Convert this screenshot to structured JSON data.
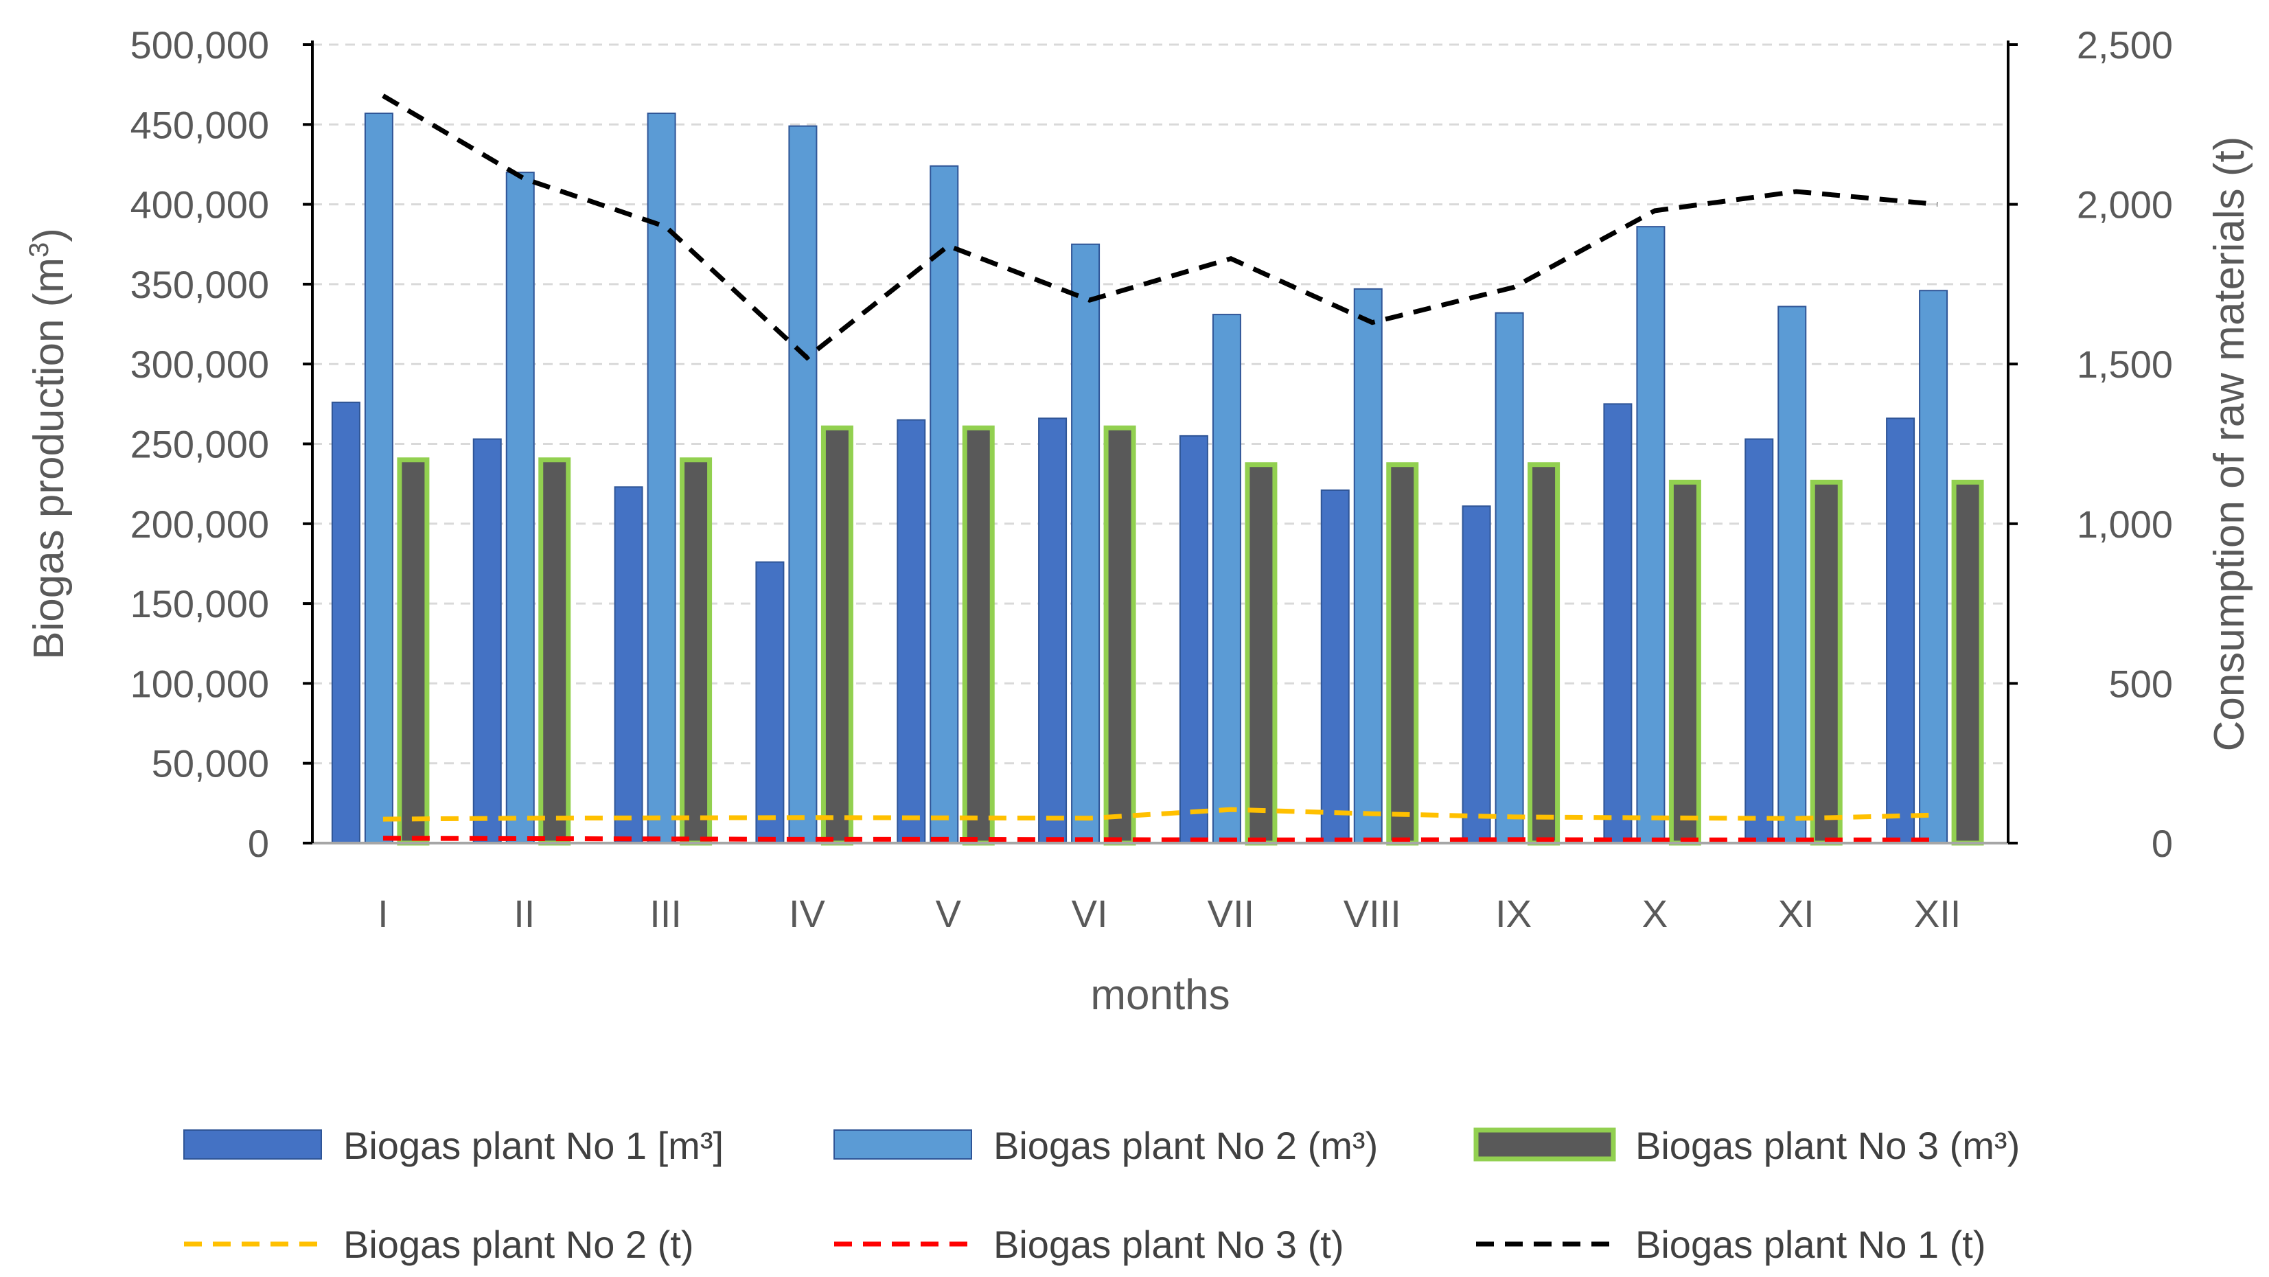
{
  "chart_data": {
    "type": "bar",
    "title": "",
    "xlabel": "months",
    "ylabel": "Biogas production (m",
    "ylabel_sup": "3",
    "ylabel_end": ")",
    "y2label": "Consumption of raw materials (t)",
    "ylim": [
      0,
      500000
    ],
    "y2lim": [
      0,
      2500
    ],
    "yticks": [
      "0",
      "50,000",
      "100,000",
      "150,000",
      "200,000",
      "250,000",
      "300,000",
      "350,000",
      "400,000",
      "450,000",
      "500,000"
    ],
    "y2ticks": [
      "0",
      "500",
      "1,000",
      "1,500",
      "2,000",
      "2,500"
    ],
    "grid": true,
    "legend_position": "bottom",
    "categories": [
      "I",
      "II",
      "III",
      "IV",
      "V",
      "VI",
      "VII",
      "VIII",
      "IX",
      "X",
      "XI",
      "XII"
    ],
    "series": [
      {
        "name": "Biogas plant No 1 [m³]",
        "type": "bar",
        "axis": "left",
        "color": "#4472C4",
        "values": [
          276000,
          253000,
          223000,
          176000,
          265000,
          266000,
          255000,
          221000,
          211000,
          275000,
          253000,
          266000
        ]
      },
      {
        "name": "Biogas plant No 2 (m³)",
        "type": "bar",
        "axis": "left",
        "color": "#5B9BD5",
        "values": [
          457000,
          420000,
          457000,
          449000,
          424000,
          375000,
          331000,
          347000,
          332000,
          386000,
          336000,
          346000
        ]
      },
      {
        "name": "Biogas plant No 3 (m³)",
        "type": "bar",
        "axis": "left",
        "color": "#595959",
        "border": "#92D050",
        "values": [
          240000,
          240000,
          240000,
          260000,
          260000,
          260000,
          237000,
          237000,
          237000,
          226000,
          226000,
          226000
        ]
      },
      {
        "name": "Biogas plant No 2 (t)",
        "type": "line",
        "axis": "right",
        "color": "#FFC000",
        "values": [
          75,
          78,
          79,
          80,
          79,
          78,
          105,
          92,
          82,
          79,
          77,
          88
        ]
      },
      {
        "name": "Biogas plant  No 3 (t)",
        "type": "line",
        "axis": "right",
        "color": "#FF0000",
        "values": [
          15,
          14,
          13,
          12,
          12,
          11,
          10,
          10,
          11,
          10,
          10,
          10
        ]
      },
      {
        "name": "Biogas plant  No 1 (t)",
        "type": "line",
        "axis": "right",
        "color": "#000000",
        "values": [
          2340,
          2080,
          1930,
          1520,
          1870,
          1700,
          1830,
          1630,
          1740,
          1980,
          2040,
          2000
        ]
      }
    ],
    "legend_order": [
      0,
      1,
      2,
      3,
      4,
      5
    ]
  }
}
